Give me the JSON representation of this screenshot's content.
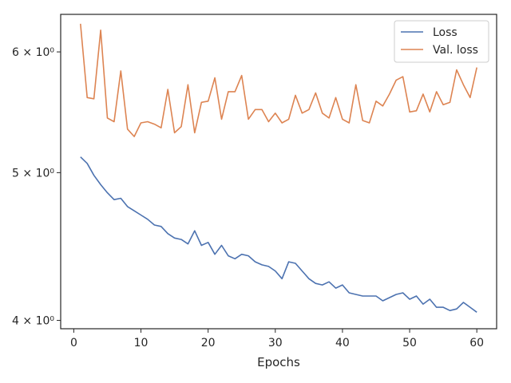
{
  "chart_data": {
    "type": "line",
    "xlabel": "Epochs",
    "ylabel": "",
    "yscale": "log",
    "xlim": [
      -1.95,
      62.95
    ],
    "ylim": [
      3.95,
      6.35
    ],
    "xticks": [
      0,
      10,
      20,
      30,
      40,
      50,
      60
    ],
    "yticks": [
      {
        "value": 4,
        "label": "4 × 10⁰"
      },
      {
        "value": 5,
        "label": "5 × 10⁰"
      },
      {
        "value": 6,
        "label": "6 × 10⁰"
      }
    ],
    "grid": false,
    "legend_position": "top-right",
    "x": [
      1,
      2,
      3,
      4,
      5,
      6,
      7,
      8,
      9,
      10,
      11,
      12,
      13,
      14,
      15,
      16,
      17,
      18,
      19,
      20,
      21,
      22,
      23,
      24,
      25,
      26,
      27,
      28,
      29,
      30,
      31,
      32,
      33,
      34,
      35,
      36,
      37,
      38,
      39,
      40,
      41,
      42,
      43,
      44,
      45,
      46,
      47,
      48,
      49,
      50,
      51,
      52,
      53,
      54,
      55,
      56,
      57,
      58,
      59,
      60
    ],
    "series": [
      {
        "name": "Loss",
        "color": "#4c72b0",
        "values": [
          5.12,
          5.07,
          4.98,
          4.91,
          4.85,
          4.8,
          4.81,
          4.75,
          4.72,
          4.69,
          4.66,
          4.62,
          4.61,
          4.56,
          4.53,
          4.52,
          4.49,
          4.58,
          4.48,
          4.5,
          4.42,
          4.48,
          4.41,
          4.39,
          4.42,
          4.41,
          4.37,
          4.35,
          4.34,
          4.31,
          4.26,
          4.37,
          4.36,
          4.31,
          4.26,
          4.23,
          4.22,
          4.24,
          4.2,
          4.22,
          4.17,
          4.16,
          4.15,
          4.15,
          4.15,
          4.12,
          4.14,
          4.16,
          4.17,
          4.13,
          4.15,
          4.1,
          4.13,
          4.08,
          4.08,
          4.06,
          4.07,
          4.11,
          4.08,
          4.05
        ]
      },
      {
        "name": "Val. loss",
        "color": "#dd8452",
        "values": [
          6.26,
          5.6,
          5.59,
          6.2,
          5.43,
          5.4,
          5.83,
          5.34,
          5.28,
          5.39,
          5.4,
          5.38,
          5.35,
          5.67,
          5.31,
          5.36,
          5.71,
          5.31,
          5.56,
          5.57,
          5.77,
          5.42,
          5.65,
          5.65,
          5.79,
          5.42,
          5.5,
          5.5,
          5.4,
          5.47,
          5.39,
          5.42,
          5.62,
          5.47,
          5.5,
          5.64,
          5.47,
          5.43,
          5.6,
          5.42,
          5.39,
          5.71,
          5.41,
          5.39,
          5.57,
          5.53,
          5.63,
          5.75,
          5.78,
          5.48,
          5.49,
          5.63,
          5.48,
          5.65,
          5.54,
          5.56,
          5.84,
          5.71,
          5.6,
          5.86
        ]
      }
    ]
  }
}
